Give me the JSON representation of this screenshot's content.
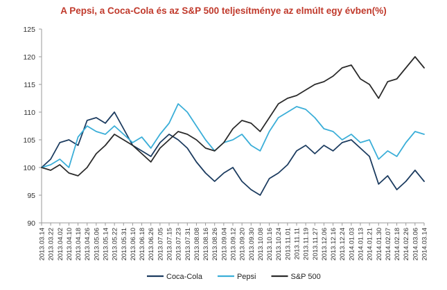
{
  "chart_data": {
    "type": "line",
    "title": "A Pepsi, a Coca-Cola és az S&P 500 teljesítménye  az elmúlt egy évben(%)",
    "xlabel": "",
    "ylabel": "",
    "ylim": [
      90,
      125
    ],
    "yticks": [
      90,
      95,
      100,
      105,
      110,
      115,
      120,
      125
    ],
    "grid": false,
    "legend_position": "bottom",
    "x": [
      "2013.03.14",
      "2013.03.22",
      "2013.04.02",
      "2013.04.10",
      "2013.04.18",
      "2013.04.26",
      "2013.05.06",
      "2013.05.14",
      "2013.05.22",
      "2013.05.31",
      "2013.06.10",
      "2013.06.18",
      "2013.06.26",
      "2013.07.05",
      "2013.07.15",
      "2013.07.23",
      "2013.07.31",
      "2013.08.08",
      "2013.08.16",
      "2013.08.26",
      "2013.09.04",
      "2013.09.12",
      "2013.09.20",
      "2013.09.30",
      "2013.10.08",
      "2013.10.16",
      "2013.10.24",
      "2013.11.01",
      "2013.11.11",
      "2013.11.19",
      "2013.11.27",
      "2013.12.06",
      "2013.12.16",
      "2013.12.24",
      "2014.01.03",
      "2014.01.13",
      "2014.01.21",
      "2014.01.30",
      "2014.02.07",
      "2014.02.18",
      "2014.02.26",
      "2014.03.06",
      "2014.03.14"
    ],
    "series": [
      {
        "name": "Coca-Cola",
        "color": "#1b3b5f",
        "values": [
          100.0,
          101.5,
          104.5,
          105.0,
          104.0,
          108.5,
          109.0,
          108.0,
          110.0,
          107.0,
          104.0,
          103.0,
          102.0,
          104.5,
          106.0,
          105.0,
          103.5,
          101.0,
          99.0,
          97.5,
          99.0,
          100.0,
          97.5,
          96.0,
          95.0,
          98.0,
          99.0,
          100.5,
          103.0,
          104.0,
          102.5,
          104.0,
          103.0,
          104.5,
          105.0,
          103.5,
          102.0,
          97.0,
          98.5,
          96.0,
          97.5,
          99.5,
          97.5
        ]
      },
      {
        "name": "Pepsi",
        "color": "#3aaed8",
        "values": [
          100.0,
          100.5,
          101.5,
          100.0,
          105.5,
          107.5,
          106.5,
          106.0,
          107.5,
          106.0,
          104.5,
          105.5,
          103.5,
          106.0,
          108.0,
          111.5,
          110.0,
          107.5,
          105.0,
          103.0,
          104.5,
          105.0,
          106.0,
          104.0,
          103.0,
          106.5,
          109.0,
          110.0,
          111.0,
          110.5,
          109.0,
          107.0,
          106.5,
          105.0,
          106.0,
          104.5,
          105.0,
          101.5,
          103.0,
          102.0,
          104.5,
          106.5,
          106.0
        ]
      },
      {
        "name": "S&P 500",
        "color": "#2a2a2a",
        "values": [
          100.0,
          99.5,
          100.5,
          99.0,
          98.5,
          100.0,
          102.5,
          104.0,
          106.0,
          105.0,
          104.0,
          102.5,
          101.0,
          103.5,
          105.0,
          106.5,
          106.0,
          105.0,
          103.5,
          103.0,
          104.5,
          107.0,
          108.5,
          108.0,
          106.5,
          109.0,
          111.5,
          112.5,
          113.0,
          114.0,
          115.0,
          115.5,
          116.5,
          118.0,
          118.5,
          116.0,
          115.0,
          112.5,
          115.5,
          116.0,
          118.0,
          120.0,
          118.0
        ]
      }
    ]
  }
}
